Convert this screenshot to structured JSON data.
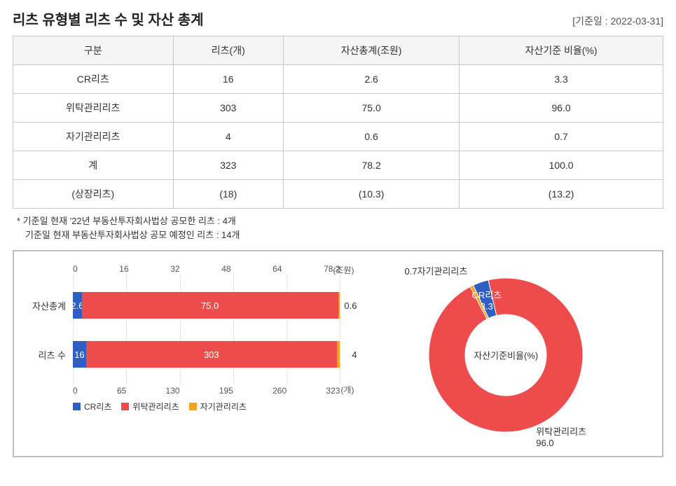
{
  "title": "리츠 유형별 리츠 수 및 자산 총계",
  "ref_date": "[기준일 : 2022-03-31]",
  "table": {
    "headers": [
      "구분",
      "리츠(개)",
      "자산총계(조원)",
      "자산기준 비율(%)"
    ],
    "rows": [
      [
        "CR리츠",
        "16",
        "2.6",
        "3.3"
      ],
      [
        "위탁관리리츠",
        "303",
        "75.0",
        "96.0"
      ],
      [
        "자기관리리츠",
        "4",
        "0.6",
        "0.7"
      ],
      [
        "계",
        "323",
        "78.2",
        "100.0"
      ],
      [
        "(상장리츠)",
        "(18)",
        "(10.3)",
        "(13.2)"
      ]
    ]
  },
  "footnote": {
    "line1": "* 기준일 현재 '22년 부동산투자회사법상 공모한 리츠 : 4개",
    "line2": "기준일 현재 부동산투자회사법상 공모 예정인 리츠 : 14개"
  },
  "colors": {
    "cr": "#2f5fc3",
    "trust": "#ee4c4c",
    "self": "#f6a21b",
    "grid": "#e6e6e6",
    "border": "#bfbfbf",
    "text": "#333333"
  },
  "bar_chart": {
    "top_ticks": [
      "0",
      "16",
      "32",
      "48",
      "64",
      "78.2"
    ],
    "top_unit": "(조원)",
    "bottom_ticks": [
      "0",
      "65",
      "130",
      "195",
      "260",
      "323"
    ],
    "bottom_unit": "(개)",
    "rows": [
      {
        "label": "자산총계",
        "max": 78.2,
        "segments": [
          {
            "key": "cr",
            "value": 2.6,
            "label": "2.6",
            "color": "#2f5fc3",
            "label_outside": false
          },
          {
            "key": "trust",
            "value": 75.0,
            "label": "75.0",
            "color": "#ee4c4c",
            "label_outside": false
          },
          {
            "key": "self",
            "value": 0.6,
            "label": "0.6",
            "color": "#f6a21b",
            "label_outside": true
          }
        ]
      },
      {
        "label": "리츠 수",
        "max": 323,
        "segments": [
          {
            "key": "cr",
            "value": 16,
            "label": "16",
            "color": "#2f5fc3",
            "label_outside": false
          },
          {
            "key": "trust",
            "value": 303,
            "label": "303",
            "color": "#ee4c4c",
            "label_outside": false
          },
          {
            "key": "self",
            "value": 4,
            "label": "4",
            "color": "#f6a21b",
            "label_outside": true
          }
        ]
      }
    ],
    "legend": [
      {
        "label": "CR리츠",
        "color": "#2f5fc3"
      },
      {
        "label": "위탁관리리츠",
        "color": "#ee4c4c"
      },
      {
        "label": "자기관리리츠",
        "color": "#f6a21b"
      }
    ]
  },
  "donut": {
    "center_label": "자산기준비율(%)",
    "slices": [
      {
        "label": "CR리츠",
        "value": 3.3,
        "pct_label": "3.3",
        "color": "#2f5fc3"
      },
      {
        "label": "위탁관리리츠",
        "value": 96.0,
        "pct_label": "96.0",
        "color": "#ee4c4c"
      },
      {
        "label": "자기관리리츠",
        "value": 0.7,
        "pct_label": "0.7",
        "color": "#f6a21b"
      }
    ],
    "outer_radius": 110,
    "inner_radius": 58,
    "start_angle_deg": -115
  }
}
